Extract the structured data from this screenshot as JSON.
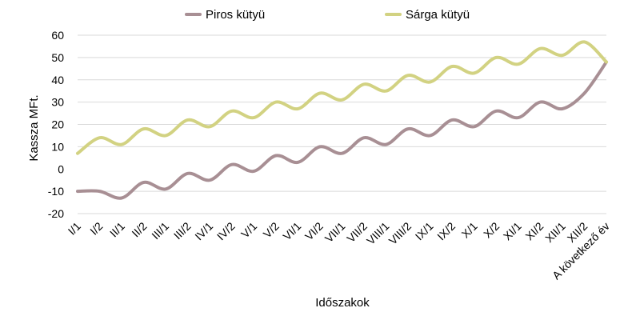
{
  "chart_data": {
    "type": "line",
    "title": "",
    "xlabel": "Időszakok",
    "ylabel": "Kassza MFt.",
    "ylim": [
      -20,
      60
    ],
    "yticks": [
      -20,
      -10,
      0,
      10,
      20,
      30,
      40,
      50,
      60
    ],
    "grid": true,
    "legend_position": "top",
    "categories": [
      "I/1",
      "I/2",
      "II/1",
      "II/2",
      "III/1",
      "III/2",
      "IV/1",
      "IV/2",
      "V/1",
      "V/2",
      "VI/1",
      "VI/2",
      "VII/1",
      "VII/2",
      "VIII/1",
      "VIII/2",
      "IX/1",
      "IX/2",
      "X/1",
      "X/2",
      "XI/1",
      "XI/2",
      "XII/1",
      "XII/2",
      "A következő év"
    ],
    "series": [
      {
        "name": "Piros kütyü",
        "color": "#a88f94",
        "values": [
          -10,
          -10,
          -13,
          -6,
          -9,
          -2,
          -5,
          2,
          -1,
          6,
          3,
          10,
          7,
          14,
          11,
          18,
          15,
          22,
          19,
          26,
          23,
          30,
          27,
          34,
          48
        ]
      },
      {
        "name": "Sárga kütyü",
        "color": "#d2d282",
        "values": [
          7,
          14,
          11,
          18,
          15,
          22,
          19,
          26,
          23,
          30,
          27,
          34,
          31,
          38,
          35,
          42,
          39,
          46,
          43,
          50,
          47,
          54,
          51,
          57,
          48
        ]
      }
    ]
  }
}
